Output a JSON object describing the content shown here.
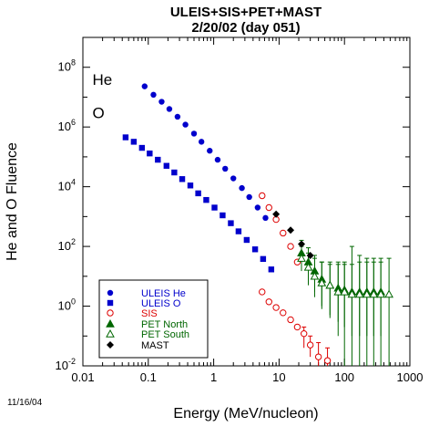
{
  "chart_data": {
    "type": "scatter",
    "title_line1": "ULEIS+SIS+PET+MAST",
    "title_line2": "2/20/02 (day 051)",
    "xlabel": "Energy (MeV/nucleon)",
    "ylabel": "He and O Fluence",
    "xscale": "log",
    "yscale": "log",
    "xlim": [
      0.01,
      1000
    ],
    "ylim": [
      0.01,
      1000000000
    ],
    "x_ticks": [
      {
        "value": 0.01,
        "label": "0.01"
      },
      {
        "value": 0.1,
        "label": "0.1"
      },
      {
        "value": 1,
        "label": "1"
      },
      {
        "value": 10,
        "label": "10"
      },
      {
        "value": 100,
        "label": "100"
      },
      {
        "value": 1000,
        "label": "1000"
      }
    ],
    "y_ticks": [
      {
        "value": 0.01,
        "base": "10",
        "exp": "-2"
      },
      {
        "value": 1,
        "base": "10",
        "exp": "0"
      },
      {
        "value": 100,
        "base": "10",
        "exp": "2"
      },
      {
        "value": 10000,
        "base": "10",
        "exp": "4"
      },
      {
        "value": 1000000,
        "base": "10",
        "exp": "6"
      },
      {
        "value": 100000000,
        "base": "10",
        "exp": "8"
      }
    ],
    "annotations": [
      {
        "text": "He",
        "x": 0.014,
        "y": 40000000
      },
      {
        "text": "O",
        "x": 0.014,
        "y": 3000000
      }
    ],
    "legend_position": "bottom-left",
    "series": [
      {
        "name": "ULEIS He",
        "marker": "circle-filled",
        "color": "#0000cc",
        "points": [
          [
            0.088,
            23000000.0
          ],
          [
            0.12,
            12000000.0
          ],
          [
            0.16,
            7000000.0
          ],
          [
            0.21,
            4000000.0
          ],
          [
            0.28,
            2200000.0
          ],
          [
            0.37,
            1200000.0
          ],
          [
            0.5,
            600000.0
          ],
          [
            0.65,
            320000.0
          ],
          [
            0.87,
            160000.0
          ],
          [
            1.15,
            80000.0
          ],
          [
            1.5,
            40000.0
          ],
          [
            2.0,
            19000.0
          ],
          [
            2.7,
            9000.0
          ],
          [
            3.5,
            4500.0
          ],
          [
            4.7,
            2000.0
          ],
          [
            6.2,
            900
          ]
        ]
      },
      {
        "name": "ULEIS O",
        "marker": "square-filled",
        "color": "#0000cc",
        "points": [
          [
            0.045,
            450000.0
          ],
          [
            0.06,
            320000.0
          ],
          [
            0.08,
            200000.0
          ],
          [
            0.105,
            130000.0
          ],
          [
            0.14,
            80000.0
          ],
          [
            0.19,
            50000.0
          ],
          [
            0.25,
            30000.0
          ],
          [
            0.33,
            18000.0
          ],
          [
            0.44,
            11000.0
          ],
          [
            0.58,
            6000.0
          ],
          [
            0.77,
            3600.0
          ],
          [
            1.03,
            2000.0
          ],
          [
            1.37,
            1100.0
          ],
          [
            1.83,
            600
          ],
          [
            2.4,
            320
          ],
          [
            3.2,
            165
          ],
          [
            4.3,
            80
          ],
          [
            5.7,
            38
          ],
          [
            7.6,
            17
          ]
        ]
      },
      {
        "name": "SIS",
        "marker": "circle-open",
        "color": "#dd0000",
        "errors": true,
        "points": [
          [
            5.5,
            5000,
            0,
            0
          ],
          [
            7,
            2000,
            0,
            0
          ],
          [
            9,
            800,
            0,
            0
          ],
          [
            11.5,
            280,
            0,
            0
          ],
          [
            15,
            100,
            0,
            0
          ],
          [
            19,
            30,
            0,
            0
          ],
          [
            5.5,
            3,
            0,
            0
          ],
          [
            7,
            1.4,
            0,
            0
          ],
          [
            9,
            0.9,
            0,
            0
          ],
          [
            11.5,
            0.6,
            0,
            0
          ],
          [
            15,
            0.35,
            0,
            0
          ],
          [
            19,
            0.2,
            0,
            0
          ],
          [
            24,
            0.12,
            0.04,
            0.2
          ],
          [
            30,
            0.05,
            0.02,
            0.1
          ],
          [
            40,
            0.02,
            0.01,
            0.06
          ],
          [
            55,
            0.015,
            0.008,
            0.04
          ]
        ]
      },
      {
        "name": "PET North",
        "marker": "triangle-filled",
        "color": "#006600",
        "errors": true,
        "points": [
          [
            22,
            60,
            25,
            160
          ],
          [
            28,
            30,
            10,
            90
          ],
          [
            35,
            15,
            3,
            50
          ],
          [
            45,
            8,
            1,
            30
          ],
          [
            60,
            5,
            0.5,
            25
          ],
          [
            80,
            4,
            0.3,
            25
          ],
          [
            100,
            3.5,
            0.2,
            25
          ],
          [
            130,
            3,
            0.1,
            25
          ],
          [
            170,
            3,
            0.1,
            30
          ],
          [
            220,
            3,
            0.1,
            30
          ],
          [
            280,
            3,
            0.1,
            30
          ],
          [
            360,
            3,
            0.1,
            30
          ]
        ]
      },
      {
        "name": "PET South",
        "marker": "triangle-open",
        "color": "#006600",
        "errors": true,
        "points": [
          [
            22,
            40,
            15,
            100
          ],
          [
            28,
            20,
            5,
            60
          ],
          [
            35,
            10,
            2,
            40
          ],
          [
            45,
            6,
            0.8,
            30
          ],
          [
            60,
            5,
            0.4,
            30
          ],
          [
            80,
            3,
            0.1,
            30
          ],
          [
            100,
            3,
            0.01,
            30
          ],
          [
            130,
            2.5,
            0.01,
            100
          ],
          [
            170,
            2.5,
            0.01,
            50
          ],
          [
            220,
            2.5,
            0.01,
            40
          ],
          [
            280,
            2.5,
            0.01,
            40
          ],
          [
            360,
            2.5,
            0.01,
            40
          ],
          [
            480,
            2.5,
            0.01,
            40
          ]
        ]
      },
      {
        "name": "MAST",
        "marker": "diamond-filled",
        "color": "#000000",
        "points": [
          [
            9,
            1200
          ],
          [
            15,
            350
          ],
          [
            22,
            120
          ],
          [
            30,
            50
          ]
        ]
      }
    ]
  },
  "footer": {
    "date_stamp": "11/16/04"
  }
}
